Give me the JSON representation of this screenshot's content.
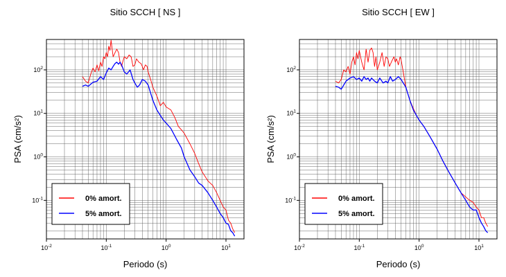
{
  "chart_data": [
    {
      "type": "line",
      "title": "Sitio SCCH [ NS ]",
      "xlabel": "Periodo (s)",
      "ylabel": "PSA (cm/s²)",
      "xscale": "log",
      "yscale": "log",
      "xlim": [
        0.01,
        20
      ],
      "ylim": [
        0.013,
        500
      ],
      "grid": true,
      "legend_position": "bottom-left",
      "xticks": [
        {
          "base": "10",
          "exp": "-2"
        },
        {
          "base": "10",
          "exp": "-1"
        },
        {
          "base": "10",
          "exp": "0"
        },
        {
          "base": "10",
          "exp": "1"
        }
      ],
      "yticks": [
        {
          "base": "10",
          "exp": "-1"
        },
        {
          "base": "10",
          "exp": "0"
        },
        {
          "base": "10",
          "exp": "1"
        },
        {
          "base": "10",
          "exp": "2"
        }
      ],
      "series": [
        {
          "name": "0% amort.",
          "color": "#ff0000",
          "x": [
            0.04,
            0.045,
            0.05,
            0.055,
            0.06,
            0.065,
            0.07,
            0.075,
            0.08,
            0.085,
            0.09,
            0.095,
            0.1,
            0.105,
            0.11,
            0.115,
            0.12,
            0.13,
            0.14,
            0.15,
            0.16,
            0.17,
            0.18,
            0.19,
            0.2,
            0.22,
            0.24,
            0.26,
            0.28,
            0.3,
            0.32,
            0.35,
            0.38,
            0.4,
            0.42,
            0.45,
            0.48,
            0.5,
            0.55,
            0.6,
            0.7,
            0.8,
            0.9,
            1.0,
            1.2,
            1.4,
            1.6,
            1.8,
            2.0,
            2.5,
            3.0,
            3.5,
            4.0,
            5.0,
            6.0,
            7.0,
            8.0,
            9.0,
            10.0,
            11.0,
            12.0,
            13.0,
            14.0
          ],
          "y": [
            70,
            55,
            50,
            80,
            110,
            90,
            130,
            95,
            150,
            120,
            200,
            180,
            250,
            200,
            350,
            280,
            480,
            200,
            250,
            300,
            250,
            150,
            120,
            160,
            200,
            180,
            220,
            200,
            120,
            130,
            180,
            150,
            140,
            120,
            100,
            130,
            120,
            90,
            60,
            40,
            25,
            15,
            18,
            14,
            12,
            8,
            5,
            4.2,
            3.5,
            2.0,
            1.2,
            0.7,
            0.45,
            0.28,
            0.22,
            0.15,
            0.1,
            0.07,
            0.06,
            0.035,
            0.03,
            0.022,
            0.018
          ]
        },
        {
          "name": "5% amort.",
          "color": "#0000ff",
          "x": [
            0.04,
            0.045,
            0.05,
            0.06,
            0.07,
            0.08,
            0.09,
            0.1,
            0.11,
            0.12,
            0.13,
            0.14,
            0.15,
            0.16,
            0.17,
            0.18,
            0.2,
            0.22,
            0.25,
            0.28,
            0.3,
            0.33,
            0.36,
            0.4,
            0.45,
            0.5,
            0.6,
            0.7,
            0.8,
            0.9,
            1.0,
            1.2,
            1.5,
            1.8,
            2.0,
            2.5,
            3.0,
            3.5,
            4.0,
            5.0,
            6.0,
            7.0,
            8.0,
            9.0,
            10.0,
            11.0,
            12.0,
            13.0,
            14.0
          ],
          "y": [
            42,
            45,
            42,
            52,
            55,
            70,
            60,
            85,
            110,
            100,
            120,
            140,
            150,
            135,
            150,
            130,
            90,
            80,
            100,
            60,
            50,
            40,
            45,
            60,
            55,
            45,
            20,
            12,
            9,
            7,
            6,
            4.5,
            2.5,
            1.6,
            1.0,
            0.5,
            0.35,
            0.25,
            0.22,
            0.15,
            0.1,
            0.07,
            0.05,
            0.04,
            0.03,
            0.028,
            0.02,
            0.018,
            0.015
          ]
        }
      ]
    },
    {
      "type": "line",
      "title": "Sitio SCCH [ EW ]",
      "xlabel": "Periodo (s)",
      "ylabel": "PSA (cm/s²)",
      "xscale": "log",
      "yscale": "log",
      "xlim": [
        0.01,
        20
      ],
      "ylim": [
        0.013,
        500
      ],
      "grid": true,
      "legend_position": "bottom-left",
      "xticks": [
        {
          "base": "10",
          "exp": "-2"
        },
        {
          "base": "10",
          "exp": "-1"
        },
        {
          "base": "10",
          "exp": "0"
        },
        {
          "base": "10",
          "exp": "1"
        }
      ],
      "yticks": [
        {
          "base": "10",
          "exp": "-1"
        },
        {
          "base": "10",
          "exp": "0"
        },
        {
          "base": "10",
          "exp": "1"
        },
        {
          "base": "10",
          "exp": "2"
        }
      ],
      "series": [
        {
          "name": "0% amort.",
          "color": "#ff0000",
          "x": [
            0.04,
            0.045,
            0.05,
            0.055,
            0.06,
            0.065,
            0.07,
            0.075,
            0.08,
            0.085,
            0.09,
            0.095,
            0.1,
            0.105,
            0.11,
            0.115,
            0.12,
            0.13,
            0.14,
            0.15,
            0.16,
            0.17,
            0.18,
            0.19,
            0.2,
            0.22,
            0.24,
            0.26,
            0.28,
            0.3,
            0.32,
            0.35,
            0.38,
            0.4,
            0.42,
            0.45,
            0.48,
            0.5,
            0.55,
            0.6,
            0.7,
            0.8,
            0.9,
            1.0,
            1.2,
            1.5,
            2.0,
            2.5,
            3.0,
            4.0,
            5.0,
            6.0,
            7.0,
            8.0,
            9.0,
            10.0,
            11.0,
            12.0,
            13.0,
            14.0
          ],
          "y": [
            55,
            50,
            60,
            100,
            90,
            120,
            80,
            150,
            200,
            130,
            250,
            180,
            280,
            200,
            150,
            120,
            100,
            300,
            150,
            280,
            320,
            250,
            120,
            200,
            100,
            150,
            250,
            120,
            200,
            180,
            120,
            160,
            200,
            150,
            180,
            130,
            200,
            170,
            80,
            40,
            20,
            13,
            9,
            7,
            5,
            3,
            1.5,
            0.8,
            0.5,
            0.25,
            0.15,
            0.12,
            0.1,
            0.09,
            0.07,
            0.06,
            0.04,
            0.04,
            0.03,
            0.025
          ]
        },
        {
          "name": "5% amort.",
          "color": "#0000ff",
          "x": [
            0.04,
            0.045,
            0.05,
            0.06,
            0.07,
            0.08,
            0.09,
            0.1,
            0.11,
            0.12,
            0.13,
            0.14,
            0.15,
            0.16,
            0.18,
            0.2,
            0.22,
            0.25,
            0.28,
            0.3,
            0.33,
            0.36,
            0.4,
            0.45,
            0.5,
            0.6,
            0.7,
            0.8,
            0.9,
            1.0,
            1.2,
            1.5,
            2.0,
            2.5,
            3.0,
            4.0,
            5.0,
            6.0,
            7.0,
            8.0,
            9.0,
            10.0,
            11.0,
            12.0,
            13.0,
            14.0
          ],
          "y": [
            42,
            40,
            36,
            55,
            65,
            70,
            60,
            65,
            55,
            70,
            60,
            65,
            55,
            65,
            55,
            50,
            65,
            50,
            55,
            50,
            70,
            55,
            60,
            70,
            60,
            40,
            20,
            12,
            9,
            7,
            5,
            3,
            1.5,
            0.8,
            0.5,
            0.25,
            0.15,
            0.1,
            0.07,
            0.06,
            0.06,
            0.04,
            0.03,
            0.025,
            0.02,
            0.018
          ]
        }
      ]
    }
  ]
}
